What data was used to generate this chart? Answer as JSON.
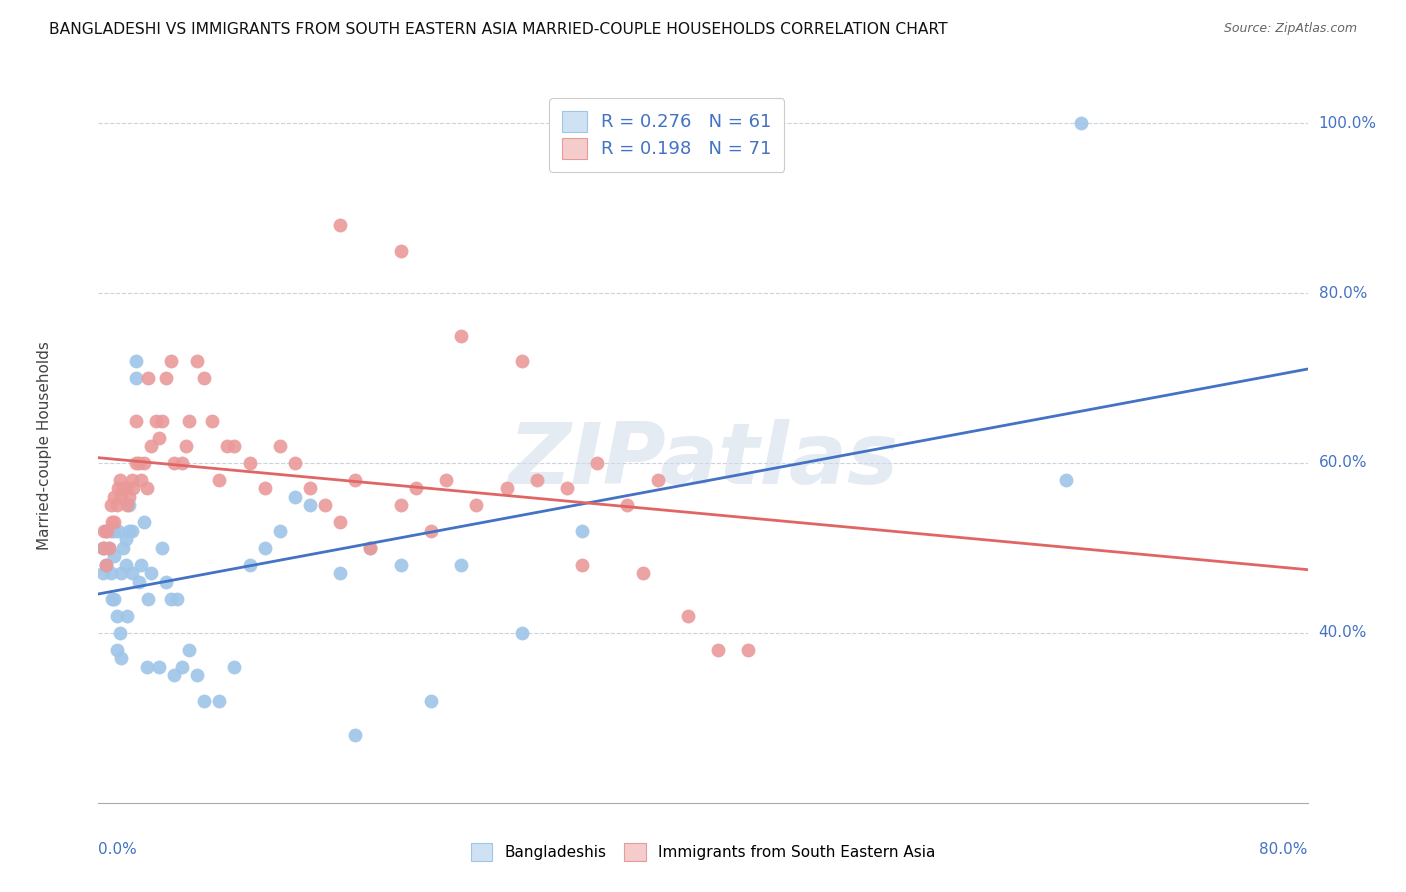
{
  "title": "BANGLADESHI VS IMMIGRANTS FROM SOUTH EASTERN ASIA MARRIED-COUPLE HOUSEHOLDS CORRELATION CHART",
  "source": "Source: ZipAtlas.com",
  "ylabel": "Married-couple Households",
  "line_blue": "#4472c4",
  "line_pink": "#e06666",
  "blue_dot": "#9fc5e8",
  "pink_dot": "#ea9999",
  "blue_patch_face": "#cfe2f3",
  "pink_patch_face": "#f4cccc",
  "watermark_color": "#d0dce8",
  "xlim": [
    0.0,
    0.8
  ],
  "ylim": [
    0.2,
    1.04
  ],
  "ytick_positions": [
    0.4,
    0.6,
    0.8,
    1.0
  ],
  "ytick_labels": [
    "40.0%",
    "60.0%",
    "80.0%",
    "100.0%"
  ],
  "grid_color": "#c8d4e0",
  "blue_scatter_x": [
    0.003,
    0.003,
    0.004,
    0.005,
    0.005,
    0.007,
    0.008,
    0.008,
    0.009,
    0.01,
    0.01,
    0.01,
    0.012,
    0.012,
    0.013,
    0.014,
    0.015,
    0.015,
    0.016,
    0.018,
    0.018,
    0.019,
    0.02,
    0.02,
    0.022,
    0.022,
    0.025,
    0.025,
    0.027,
    0.028,
    0.03,
    0.032,
    0.033,
    0.035,
    0.04,
    0.042,
    0.045,
    0.048,
    0.05,
    0.052,
    0.055,
    0.06,
    0.065,
    0.07,
    0.08,
    0.09,
    0.1,
    0.11,
    0.12,
    0.13,
    0.14,
    0.16,
    0.17,
    0.18,
    0.2,
    0.22,
    0.24,
    0.28,
    0.32,
    0.64,
    0.65
  ],
  "blue_scatter_y": [
    0.5,
    0.47,
    0.5,
    0.52,
    0.48,
    0.5,
    0.52,
    0.47,
    0.44,
    0.52,
    0.49,
    0.44,
    0.42,
    0.38,
    0.52,
    0.4,
    0.37,
    0.47,
    0.5,
    0.51,
    0.48,
    0.42,
    0.52,
    0.55,
    0.47,
    0.52,
    0.72,
    0.7,
    0.46,
    0.48,
    0.53,
    0.36,
    0.44,
    0.47,
    0.36,
    0.5,
    0.46,
    0.44,
    0.35,
    0.44,
    0.36,
    0.38,
    0.35,
    0.32,
    0.32,
    0.36,
    0.48,
    0.5,
    0.52,
    0.56,
    0.55,
    0.47,
    0.28,
    0.5,
    0.48,
    0.32,
    0.48,
    0.4,
    0.52,
    0.58,
    1.0
  ],
  "pink_scatter_x": [
    0.003,
    0.004,
    0.005,
    0.006,
    0.007,
    0.008,
    0.009,
    0.01,
    0.01,
    0.012,
    0.013,
    0.014,
    0.015,
    0.016,
    0.018,
    0.019,
    0.02,
    0.022,
    0.023,
    0.025,
    0.025,
    0.027,
    0.028,
    0.03,
    0.032,
    0.033,
    0.035,
    0.038,
    0.04,
    0.042,
    0.045,
    0.048,
    0.05,
    0.055,
    0.058,
    0.06,
    0.065,
    0.07,
    0.075,
    0.08,
    0.085,
    0.09,
    0.1,
    0.11,
    0.12,
    0.13,
    0.14,
    0.15,
    0.16,
    0.17,
    0.18,
    0.2,
    0.21,
    0.22,
    0.23,
    0.25,
    0.27,
    0.29,
    0.31,
    0.33,
    0.35,
    0.37,
    0.39,
    0.41,
    0.43,
    0.16,
    0.2,
    0.24,
    0.28,
    0.32,
    0.36
  ],
  "pink_scatter_y": [
    0.5,
    0.52,
    0.48,
    0.52,
    0.5,
    0.55,
    0.53,
    0.53,
    0.56,
    0.55,
    0.57,
    0.58,
    0.56,
    0.57,
    0.57,
    0.55,
    0.56,
    0.58,
    0.57,
    0.6,
    0.65,
    0.6,
    0.58,
    0.6,
    0.57,
    0.7,
    0.62,
    0.65,
    0.63,
    0.65,
    0.7,
    0.72,
    0.6,
    0.6,
    0.62,
    0.65,
    0.72,
    0.7,
    0.65,
    0.58,
    0.62,
    0.62,
    0.6,
    0.57,
    0.62,
    0.6,
    0.57,
    0.55,
    0.53,
    0.58,
    0.5,
    0.55,
    0.57,
    0.52,
    0.58,
    0.55,
    0.57,
    0.58,
    0.57,
    0.6,
    0.55,
    0.58,
    0.42,
    0.38,
    0.38,
    0.88,
    0.85,
    0.75,
    0.72,
    0.48,
    0.47
  ]
}
